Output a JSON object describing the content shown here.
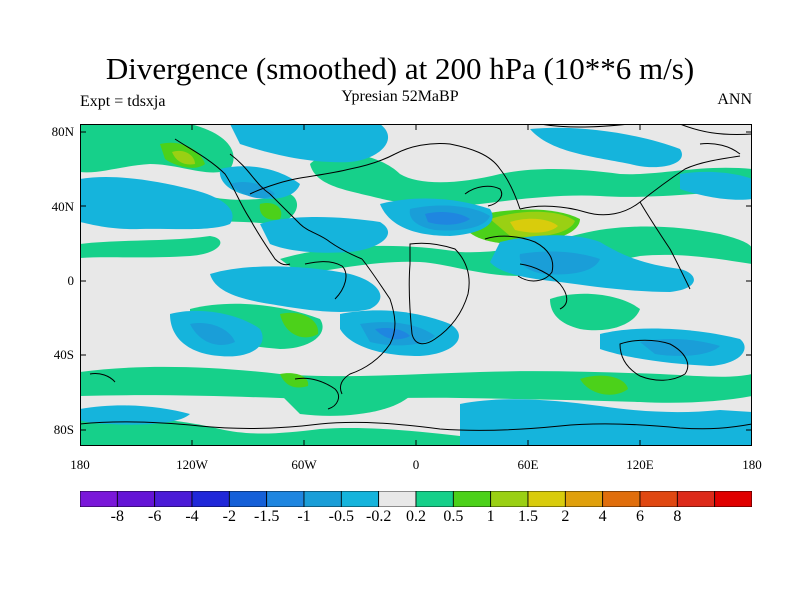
{
  "title": "Divergence (smoothed) at 200 hPa (10**6 m/s)",
  "subtitle": "Ypresian  52MaBP",
  "left_label": "Expt = tdsxja",
  "right_label": "ANN",
  "y_ticks": [
    "80N",
    "40N",
    "0",
    "40S",
    "80S"
  ],
  "x_ticks": [
    "180",
    "120W",
    "60W",
    "0",
    "60E",
    "120E",
    "180"
  ],
  "colorbar": {
    "colors": [
      "#7a17d9",
      "#6414d6",
      "#4b1bd7",
      "#2028d9",
      "#1560d8",
      "#1f86e0",
      "#1a9ed8",
      "#15b4dc",
      "#e8e8e8",
      "#16d08a",
      "#4cd11a",
      "#9ad013",
      "#d9cc0c",
      "#e0a00c",
      "#e06e0c",
      "#e04812",
      "#dd2a1a",
      "#e00000"
    ],
    "labels": [
      "-8",
      "-6",
      "-4",
      "-2",
      "-1.5",
      "-1",
      "-0.5",
      "-0.2",
      "0.2",
      "0.5",
      "1",
      "1.5",
      "2",
      "4",
      "6",
      "8"
    ]
  },
  "map_colors": {
    "background": "#e8e8e8",
    "neg_02": "#15b4dc",
    "neg_05": "#1a9ed8",
    "neg_1": "#1f86e0",
    "pos_02": "#16d08a",
    "pos_05": "#4cd11a",
    "pos_1": "#9ad013",
    "pos_15": "#d9cc0c"
  }
}
